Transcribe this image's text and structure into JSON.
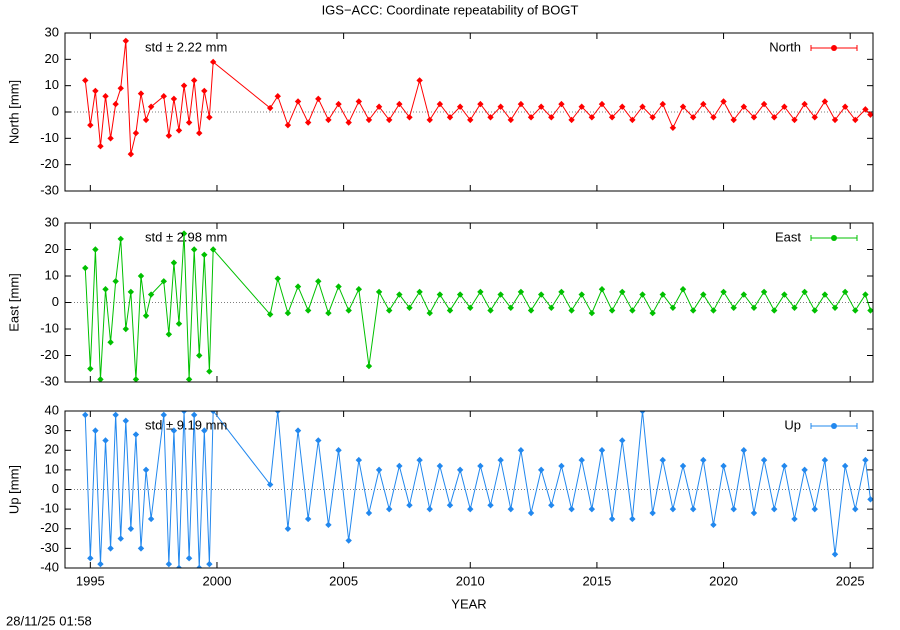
{
  "footer": "28/11/25 01:58",
  "chart_data": [
    {
      "type": "line",
      "title": "IGS−ACC: Coordinate repeatability of BOGT",
      "ylabel": "North [mm]",
      "annotation": "std ± 2.22 mm",
      "legend": "top-right",
      "xlim": [
        1994,
        2025.9
      ],
      "ylim": [
        -30,
        30
      ],
      "yticks": [
        -30,
        -20,
        -10,
        0,
        10,
        20,
        30
      ],
      "x": [
        1994.8,
        1995.0,
        1995.2,
        1995.4,
        1995.6,
        1995.8,
        1996.0,
        1996.2,
        1996.4,
        1996.6,
        1996.8,
        1997.0,
        1997.2,
        1997.4,
        1997.9,
        1998.1,
        1998.3,
        1998.5,
        1998.7,
        1998.9,
        1999.1,
        1999.3,
        1999.5,
        1999.7,
        1999.85,
        2002.1,
        2002.4,
        2002.8,
        2003.2,
        2003.6,
        2004.0,
        2004.4,
        2004.8,
        2005.2,
        2005.6,
        2006.0,
        2006.4,
        2006.8,
        2007.2,
        2007.6,
        2008.0,
        2008.4,
        2008.8,
        2009.2,
        2009.6,
        2010.0,
        2010.4,
        2010.8,
        2011.2,
        2011.6,
        2012.0,
        2012.4,
        2012.8,
        2013.2,
        2013.6,
        2014.0,
        2014.4,
        2014.8,
        2015.2,
        2015.6,
        2016.0,
        2016.4,
        2016.8,
        2017.2,
        2017.6,
        2018.0,
        2018.4,
        2018.8,
        2019.2,
        2019.6,
        2020.0,
        2020.4,
        2020.8,
        2021.2,
        2021.6,
        2022.0,
        2022.4,
        2022.8,
        2023.2,
        2023.6,
        2024.0,
        2024.4,
        2024.8,
        2025.2,
        2025.6,
        2025.8
      ],
      "series": [
        {
          "name": "North",
          "color": "#ff0000",
          "values": [
            12,
            -5,
            8,
            -13,
            6,
            -10,
            3,
            9,
            27,
            -16,
            -8,
            7,
            -3,
            2,
            6,
            -9,
            5,
            -7,
            10,
            -4,
            12,
            -8,
            8,
            -2,
            19,
            1.5,
            6,
            -5,
            4,
            -4,
            5,
            -3,
            3,
            -4,
            4,
            -3,
            2,
            -3,
            3,
            -2,
            12,
            -3,
            3,
            -2,
            2,
            -3,
            3,
            -2,
            2,
            -3,
            3,
            -2,
            2,
            -2,
            3,
            -3,
            2,
            -2,
            3,
            -2,
            2,
            -3,
            2,
            -2,
            3,
            -6,
            2,
            -2,
            3,
            -2,
            4,
            -3,
            2,
            -2,
            3,
            -2,
            2,
            -3,
            3,
            -2,
            4,
            -3,
            2,
            -3,
            1,
            -1
          ]
        }
      ]
    },
    {
      "type": "line",
      "ylabel": "East [mm]",
      "annotation": "std ± 2.98 mm",
      "legend": "top-right",
      "xlim": [
        1994,
        2025.9
      ],
      "ylim": [
        -30,
        30
      ],
      "yticks": [
        -30,
        -20,
        -10,
        0,
        10,
        20,
        30
      ],
      "x": [
        1994.8,
        1995.0,
        1995.2,
        1995.4,
        1995.6,
        1995.8,
        1996.0,
        1996.2,
        1996.4,
        1996.6,
        1996.8,
        1997.0,
        1997.2,
        1997.4,
        1997.9,
        1998.1,
        1998.3,
        1998.5,
        1998.7,
        1998.9,
        1999.1,
        1999.3,
        1999.5,
        1999.7,
        1999.85,
        2002.1,
        2002.4,
        2002.8,
        2003.2,
        2003.6,
        2004.0,
        2004.4,
        2004.8,
        2005.2,
        2005.6,
        2006.0,
        2006.4,
        2006.8,
        2007.2,
        2007.6,
        2008.0,
        2008.4,
        2008.8,
        2009.2,
        2009.6,
        2010.0,
        2010.4,
        2010.8,
        2011.2,
        2011.6,
        2012.0,
        2012.4,
        2012.8,
        2013.2,
        2013.6,
        2014.0,
        2014.4,
        2014.8,
        2015.2,
        2015.6,
        2016.0,
        2016.4,
        2016.8,
        2017.2,
        2017.6,
        2018.0,
        2018.4,
        2018.8,
        2019.2,
        2019.6,
        2020.0,
        2020.4,
        2020.8,
        2021.2,
        2021.6,
        2022.0,
        2022.4,
        2022.8,
        2023.2,
        2023.6,
        2024.0,
        2024.4,
        2024.8,
        2025.2,
        2025.6,
        2025.8
      ],
      "series": [
        {
          "name": "East",
          "color": "#00c000",
          "values": [
            13,
            -25,
            20,
            -29,
            5,
            -15,
            8,
            24,
            -10,
            4,
            -29,
            10,
            -5,
            3,
            8,
            -12,
            15,
            -8,
            26,
            -29,
            20,
            -20,
            18,
            -26,
            20,
            -4.5,
            9,
            -4,
            6,
            -3,
            8,
            -4,
            6,
            -3,
            5,
            -24,
            4,
            -3,
            3,
            -2,
            4,
            -4,
            3,
            -3,
            3,
            -2,
            4,
            -3,
            3,
            -2,
            4,
            -3,
            3,
            -2,
            4,
            -3,
            3,
            -4,
            5,
            -3,
            4,
            -3,
            3,
            -4,
            3,
            -2,
            5,
            -3,
            3,
            -3,
            4,
            -2,
            3,
            -2,
            4,
            -3,
            3,
            -2,
            4,
            -3,
            3,
            -2,
            4,
            -3,
            3,
            -3
          ]
        }
      ]
    },
    {
      "type": "line",
      "ylabel": "Up [mm]",
      "annotation": "std ± 9.19 mm",
      "xlabel": "YEAR",
      "legend": "top-right",
      "xlim": [
        1994,
        2025.9
      ],
      "ylim": [
        -40,
        40
      ],
      "yticks": [
        -40,
        -30,
        -20,
        -10,
        0,
        10,
        20,
        30,
        40
      ],
      "xticks": [
        1995,
        2000,
        2005,
        2010,
        2015,
        2020,
        2025
      ],
      "x": [
        1994.8,
        1995.0,
        1995.2,
        1995.4,
        1995.6,
        1995.8,
        1996.0,
        1996.2,
        1996.4,
        1996.6,
        1996.8,
        1997.0,
        1997.2,
        1997.4,
        1997.9,
        1998.1,
        1998.3,
        1998.5,
        1998.7,
        1998.9,
        1999.1,
        1999.3,
        1999.5,
        1999.7,
        1999.85,
        2002.1,
        2002.4,
        2002.8,
        2003.2,
        2003.6,
        2004.0,
        2004.4,
        2004.8,
        2005.2,
        2005.6,
        2006.0,
        2006.4,
        2006.8,
        2007.2,
        2007.6,
        2008.0,
        2008.4,
        2008.8,
        2009.2,
        2009.6,
        2010.0,
        2010.4,
        2010.8,
        2011.2,
        2011.6,
        2012.0,
        2012.4,
        2012.8,
        2013.2,
        2013.6,
        2014.0,
        2014.4,
        2014.8,
        2015.2,
        2015.6,
        2016.0,
        2016.4,
        2016.8,
        2017.2,
        2017.6,
        2018.0,
        2018.4,
        2018.8,
        2019.2,
        2019.6,
        2020.0,
        2020.4,
        2020.8,
        2021.2,
        2021.6,
        2022.0,
        2022.4,
        2022.8,
        2023.2,
        2023.6,
        2024.0,
        2024.4,
        2024.8,
        2025.2,
        2025.6,
        2025.8
      ],
      "series": [
        {
          "name": "Up",
          "color": "#2288ee",
          "values": [
            38,
            -35,
            30,
            -38,
            25,
            -30,
            38,
            -25,
            35,
            -20,
            28,
            -30,
            10,
            -15,
            38,
            -38,
            30,
            -40,
            40,
            -35,
            38,
            -40,
            30,
            -38,
            40,
            2.5,
            40,
            -20,
            30,
            -15,
            25,
            -18,
            20,
            -26,
            15,
            -12,
            10,
            -10,
            12,
            -8,
            15,
            -10,
            12,
            -8,
            10,
            -10,
            12,
            -8,
            15,
            -10,
            20,
            -12,
            10,
            -8,
            12,
            -10,
            15,
            -10,
            20,
            -15,
            25,
            -15,
            40,
            -12,
            15,
            -10,
            12,
            -10,
            15,
            -18,
            12,
            -10,
            20,
            -12,
            15,
            -10,
            12,
            -15,
            10,
            -10,
            15,
            -33,
            12,
            -10,
            15,
            -5
          ]
        }
      ]
    }
  ]
}
